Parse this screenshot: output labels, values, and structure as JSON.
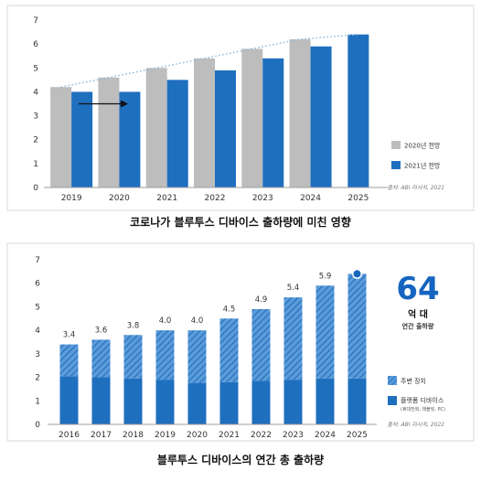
{
  "colors": {
    "gray": "#bdbdbd",
    "blue": "#1f6fbf",
    "light_blue": "#5b9bd8",
    "accent": "#1565c0",
    "dotted": "#90b8e0",
    "frame": "#d9d9d9"
  },
  "chart_data": [
    {
      "type": "bar",
      "categories": [
        "2019",
        "2020",
        "2021",
        "2022",
        "2023",
        "2024",
        "2025"
      ],
      "series": [
        {
          "name": "2020년 전망",
          "values": [
            4.2,
            4.6,
            5.0,
            5.4,
            5.8,
            6.2,
            null
          ]
        },
        {
          "name": "2021년 전망",
          "values": [
            4.0,
            4.0,
            4.5,
            4.9,
            5.4,
            5.9,
            6.4
          ]
        }
      ],
      "ylim": [
        0,
        7
      ],
      "yticks": [
        "0",
        "1",
        "2",
        "3",
        "4",
        "5",
        "6",
        "7"
      ],
      "grid": false,
      "legend": "bottom-right",
      "source": "출처: ABI 리서치, 2021",
      "caption": "코로나가 블루투스 디바이스 출하량에 미친 영향"
    },
    {
      "type": "bar",
      "stacked": true,
      "categories": [
        "2016",
        "2017",
        "2018",
        "2019",
        "2020",
        "2021",
        "2022",
        "2023",
        "2024",
        "2025"
      ],
      "totals": [
        3.4,
        3.6,
        3.8,
        4.0,
        4.0,
        4.5,
        4.9,
        5.4,
        5.9,
        6.4
      ],
      "total_labels": [
        "3.4",
        "3.6",
        "3.8",
        "4.0",
        "4.0",
        "4.5",
        "4.9",
        "5.4",
        "5.9",
        ""
      ],
      "series": [
        {
          "name": "플랫폼 디바이스",
          "values": [
            2.05,
            2.0,
            1.95,
            1.9,
            1.75,
            1.8,
            1.85,
            1.9,
            1.95,
            1.95
          ]
        },
        {
          "name": "주변 장치",
          "values": [
            1.35,
            1.6,
            1.85,
            2.1,
            2.25,
            2.7,
            3.05,
            3.5,
            3.95,
            4.45
          ]
        }
      ],
      "series_notes": [
        "(휴대전화, 태블릿, PC)",
        ""
      ],
      "ylim": [
        0,
        7
      ],
      "yticks": [
        "0",
        "1",
        "2",
        "3",
        "4",
        "5",
        "6",
        "7"
      ],
      "grid": false,
      "legend": "right",
      "highlight": {
        "value": "64",
        "unit": "억 대",
        "label": "연간 출하량"
      },
      "source": "출처: ABI 리서치, 2022",
      "caption": "블루투스 디바이스의 연간 총 출하량"
    }
  ]
}
